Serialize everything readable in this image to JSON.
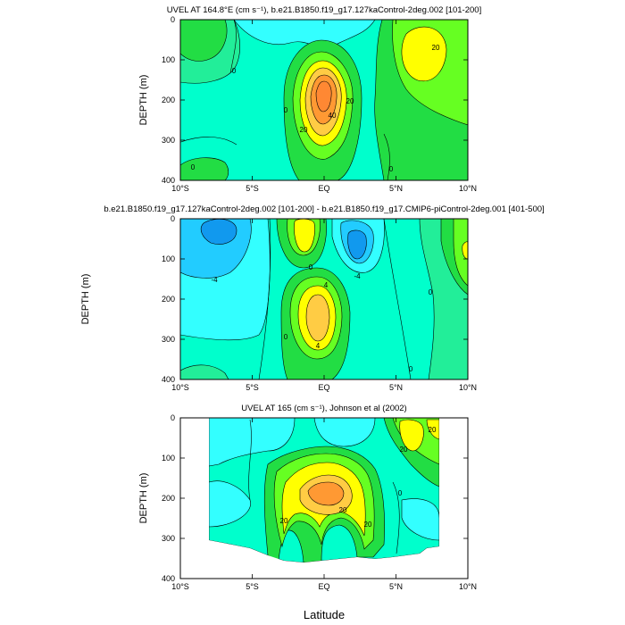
{
  "figure": {
    "xlabel": "Latitude",
    "colors": {
      "cyan": "#33ffff",
      "teal": "#00ffcc",
      "aqua_green": "#22ee99",
      "green": "#22dd44",
      "light_green": "#66ff22",
      "yellow": "#ffff00",
      "light_orange": "#ffcc44",
      "orange": "#ff9933",
      "deep_orange": "#ff8833",
      "light_blue": "#22ccff",
      "blue": "#1199ee"
    }
  },
  "chart_data": [
    {
      "type": "contour",
      "title": "UVEL AT 164.8°E (cm s⁻¹), b.e21.B1850.f19_g17.127kaControl-2deg.002 [101-200]",
      "ylabel": "DEPTH (m)",
      "xlim": [
        -10,
        10
      ],
      "ylim": [
        400,
        0
      ],
      "x_ticks": [
        "10°S",
        "5°S",
        "EQ",
        "5°N",
        "10°N"
      ],
      "y_ticks": [
        "0",
        "100",
        "200",
        "300",
        "400"
      ],
      "contour_labels": [
        "0",
        "0",
        "20",
        "40",
        "20",
        "20",
        "0",
        "0"
      ],
      "features": [
        {
          "kind": "eastward jet core",
          "lat": -0.5,
          "depth": 200,
          "max_value": 50
        },
        {
          "kind": "surface eastward flow",
          "lat": 6.5,
          "depth": 40,
          "max_value": 25
        }
      ]
    },
    {
      "type": "contour",
      "title": "b.e21.B1850.f19_g17.127kaControl-2deg.002 [101-200] - b.e21.B1850.f19_g17.CMIP6-piControl-2deg.001 [401-500]",
      "ylabel": "DEPTH (m)",
      "xlim": [
        -10,
        10
      ],
      "ylim": [
        400,
        0
      ],
      "x_ticks": [
        "10°S",
        "5°S",
        "EQ",
        "5°N",
        "10°N"
      ],
      "y_ticks": [
        "0",
        "100",
        "200",
        "300",
        "400"
      ],
      "contour_labels": [
        "-4",
        "0",
        "0",
        "-4",
        "4",
        "4",
        "0",
        "0"
      ],
      "features": [
        {
          "kind": "positive anomaly",
          "lat": -0.5,
          "depth": 230,
          "max_value": 8
        },
        {
          "kind": "negative anomaly",
          "lat": 2.5,
          "depth": 70,
          "max_value": -8
        }
      ]
    },
    {
      "type": "contour",
      "title": "UVEL AT 165 (cm s⁻¹), Johnson et al (2002)",
      "ylabel": "DEPTH (m)",
      "xlim": [
        -10,
        10
      ],
      "ylim": [
        400,
        0
      ],
      "data_lat_range": [
        -8,
        8
      ],
      "x_ticks": [
        "10°S",
        "5°S",
        "EQ",
        "5°N",
        "10°N"
      ],
      "y_ticks": [
        "0",
        "100",
        "200",
        "300",
        "400"
      ],
      "contour_labels": [
        "20",
        "20",
        "20",
        "20",
        "20",
        "0"
      ],
      "features": [
        {
          "kind": "eastward jet core",
          "lat": 0,
          "depth": 190,
          "max_value": 50
        },
        {
          "kind": "surface eastward flow",
          "lat": 6,
          "depth": 40,
          "max_value": 30
        }
      ]
    }
  ]
}
